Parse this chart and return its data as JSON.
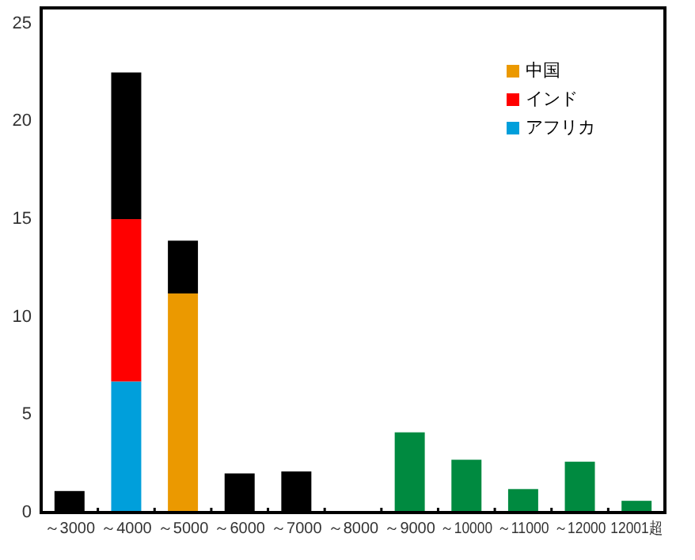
{
  "chart_data": {
    "type": "bar",
    "stacked": true,
    "categories": [
      "～3000",
      "～4000",
      "～5000",
      "～6000",
      "～7000",
      "～8000",
      "～9000",
      "～10000",
      "～11000",
      "～12000",
      "12001超"
    ],
    "series": [
      {
        "name": "アフリカ",
        "color": "#009fdb",
        "values": [
          null,
          6.7,
          null,
          null,
          null,
          null,
          null,
          null,
          null,
          null,
          null
        ]
      },
      {
        "name": "インド",
        "color": "#ff0000",
        "values": [
          null,
          8.3,
          null,
          null,
          null,
          null,
          null,
          null,
          null,
          null,
          null
        ]
      },
      {
        "name": "中国",
        "color": "#eb9900",
        "values": [
          null,
          null,
          11.2,
          null,
          null,
          null,
          null,
          null,
          null,
          null,
          null
        ]
      },
      {
        "color": "#000000",
        "values": [
          1.1,
          7.5,
          2.7,
          2.0,
          2.1,
          null,
          null,
          null,
          null,
          null,
          null
        ]
      },
      {
        "color": "#008a40",
        "values": [
          null,
          null,
          null,
          null,
          null,
          null,
          4.1,
          2.7,
          1.2,
          2.6,
          0.6
        ]
      }
    ],
    "ylim": [
      0,
      25.8
    ],
    "yticks": [
      0,
      5,
      10,
      15,
      20,
      25
    ],
    "legend": "top right"
  }
}
